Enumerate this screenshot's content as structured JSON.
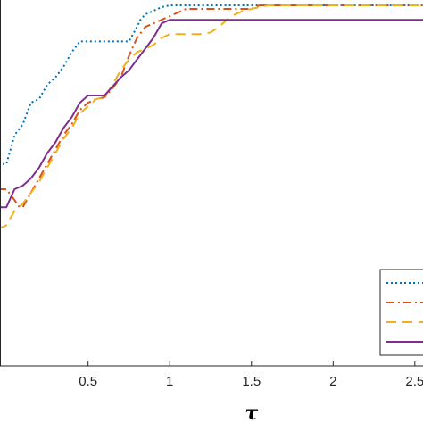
{
  "chart_data": {
    "type": "line",
    "title": "",
    "xlabel": "τ",
    "ylabel": "",
    "xlim": [
      -0.05,
      2.55
    ],
    "ylim": [
      0.0,
      1.0
    ],
    "grid": false,
    "legend_position": "bottom-right",
    "x_ticks": [
      {
        "value": 0.5,
        "label": "0.5"
      },
      {
        "value": 1.0,
        "label": "1"
      },
      {
        "value": 1.5,
        "label": "1.5"
      },
      {
        "value": 2.0,
        "label": "2"
      },
      {
        "value": 2.5,
        "label": "2.5"
      }
    ],
    "series": [
      {
        "color": "#0072BD",
        "style": "dotted",
        "points": [
          [
            -0.05,
            0.56
          ],
          [
            0.0,
            0.56
          ],
          [
            0.05,
            0.64
          ],
          [
            0.1,
            0.67
          ],
          [
            0.15,
            0.73
          ],
          [
            0.2,
            0.74
          ],
          [
            0.25,
            0.78
          ],
          [
            0.3,
            0.8
          ],
          [
            0.35,
            0.83
          ],
          [
            0.4,
            0.87
          ],
          [
            0.45,
            0.9
          ],
          [
            0.5,
            0.9
          ],
          [
            0.55,
            0.9
          ],
          [
            0.6,
            0.9
          ],
          [
            0.65,
            0.9
          ],
          [
            0.7,
            0.9
          ],
          [
            0.75,
            0.9
          ],
          [
            0.8,
            0.94
          ],
          [
            0.82,
            0.96
          ],
          [
            0.85,
            0.975
          ],
          [
            0.9,
            0.985
          ],
          [
            0.95,
            0.995
          ],
          [
            1.0,
            1.0
          ],
          [
            1.2,
            1.0
          ],
          [
            1.5,
            1.0
          ],
          [
            2.55,
            1.0
          ]
        ]
      },
      {
        "color": "#D95319",
        "style": "dashdot",
        "points": [
          [
            -0.05,
            0.49
          ],
          [
            0.0,
            0.49
          ],
          [
            0.05,
            0.46
          ],
          [
            0.08,
            0.44
          ],
          [
            0.1,
            0.44
          ],
          [
            0.15,
            0.48
          ],
          [
            0.2,
            0.52
          ],
          [
            0.25,
            0.56
          ],
          [
            0.3,
            0.6
          ],
          [
            0.35,
            0.64
          ],
          [
            0.4,
            0.67
          ],
          [
            0.45,
            0.71
          ],
          [
            0.5,
            0.73
          ],
          [
            0.55,
            0.74
          ],
          [
            0.6,
            0.745
          ],
          [
            0.65,
            0.77
          ],
          [
            0.7,
            0.8
          ],
          [
            0.75,
            0.86
          ],
          [
            0.8,
            0.91
          ],
          [
            0.85,
            0.94
          ],
          [
            0.9,
            0.95
          ],
          [
            0.95,
            0.96
          ],
          [
            1.0,
            0.97
          ],
          [
            1.05,
            0.98
          ],
          [
            1.1,
            0.99
          ],
          [
            1.5,
            0.99
          ],
          [
            1.55,
            1.0
          ],
          [
            2.55,
            1.0
          ]
        ]
      },
      {
        "color": "#EDB120",
        "style": "dashed",
        "points": [
          [
            -0.05,
            0.38
          ],
          [
            0.0,
            0.39
          ],
          [
            0.05,
            0.43
          ],
          [
            0.1,
            0.45
          ],
          [
            0.15,
            0.48
          ],
          [
            0.2,
            0.51
          ],
          [
            0.25,
            0.55
          ],
          [
            0.3,
            0.59
          ],
          [
            0.35,
            0.63
          ],
          [
            0.4,
            0.66
          ],
          [
            0.45,
            0.7
          ],
          [
            0.5,
            0.72
          ],
          [
            0.55,
            0.74
          ],
          [
            0.6,
            0.745
          ],
          [
            0.65,
            0.78
          ],
          [
            0.7,
            0.82
          ],
          [
            0.75,
            0.85
          ],
          [
            0.8,
            0.87
          ],
          [
            0.85,
            0.88
          ],
          [
            0.9,
            0.89
          ],
          [
            0.95,
            0.91
          ],
          [
            1.0,
            0.92
          ],
          [
            1.1,
            0.92
          ],
          [
            1.2,
            0.92
          ],
          [
            1.25,
            0.925
          ],
          [
            1.3,
            0.94
          ],
          [
            1.35,
            0.96
          ],
          [
            1.4,
            0.975
          ],
          [
            1.45,
            0.985
          ],
          [
            1.5,
            0.99
          ],
          [
            1.6,
            1.0
          ],
          [
            2.55,
            1.0
          ]
        ]
      },
      {
        "color": "#7E2F8E",
        "style": "solid",
        "points": [
          [
            -0.05,
            0.44
          ],
          [
            0.0,
            0.44
          ],
          [
            0.05,
            0.49
          ],
          [
            0.1,
            0.5
          ],
          [
            0.15,
            0.52
          ],
          [
            0.2,
            0.55
          ],
          [
            0.25,
            0.59
          ],
          [
            0.3,
            0.62
          ],
          [
            0.35,
            0.66
          ],
          [
            0.4,
            0.69
          ],
          [
            0.45,
            0.73
          ],
          [
            0.5,
            0.75
          ],
          [
            0.55,
            0.75
          ],
          [
            0.6,
            0.75
          ],
          [
            0.65,
            0.775
          ],
          [
            0.7,
            0.8
          ],
          [
            0.75,
            0.82
          ],
          [
            0.8,
            0.85
          ],
          [
            0.85,
            0.88
          ],
          [
            0.9,
            0.91
          ],
          [
            0.95,
            0.95
          ],
          [
            1.0,
            0.96
          ],
          [
            1.2,
            0.96
          ],
          [
            1.5,
            0.96
          ],
          [
            2.55,
            0.96
          ]
        ]
      }
    ]
  }
}
